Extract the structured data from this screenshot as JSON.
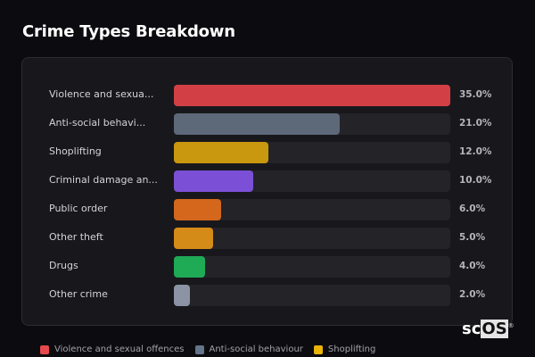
{
  "header": {
    "title": "Crime Types Breakdown"
  },
  "chart_data": {
    "type": "bar",
    "orientation": "horizontal",
    "title": "Crime Types Breakdown",
    "categories": [
      "Violence and sexual offences",
      "Anti-social behaviour",
      "Shoplifting",
      "Criminal damage and arson",
      "Public order",
      "Other theft",
      "Drugs",
      "Other crime"
    ],
    "display_labels": [
      "Violence and sexua...",
      "Anti-social behavi...",
      "Shoplifting",
      "Criminal damage an...",
      "Public order",
      "Other theft",
      "Drugs",
      "Other crime"
    ],
    "values": [
      35.0,
      21.0,
      12.0,
      10.0,
      6.0,
      5.0,
      4.0,
      2.0
    ],
    "value_labels": [
      "35.0%",
      "21.0%",
      "12.0%",
      "10.0%",
      "6.0%",
      "5.0%",
      "4.0%",
      "2.0%"
    ],
    "colors": [
      "#d24045",
      "#5d6878",
      "#c9980f",
      "#7b4fd6",
      "#d4671c",
      "#d48b17",
      "#1faa55",
      "#8b93a5"
    ],
    "xlabel": "",
    "ylabel": "",
    "unit": "%",
    "legend_position": "bottom",
    "grid": false
  },
  "legend": [
    {
      "label": "Violence and sexual offences",
      "color": "#e5484d"
    },
    {
      "label": "Anti-social behaviour",
      "color": "#64748b"
    },
    {
      "label": "Shoplifting",
      "color": "#eab308"
    }
  ],
  "logo": {
    "prefix": "sc",
    "boxed": "OS",
    "mark": "®"
  }
}
